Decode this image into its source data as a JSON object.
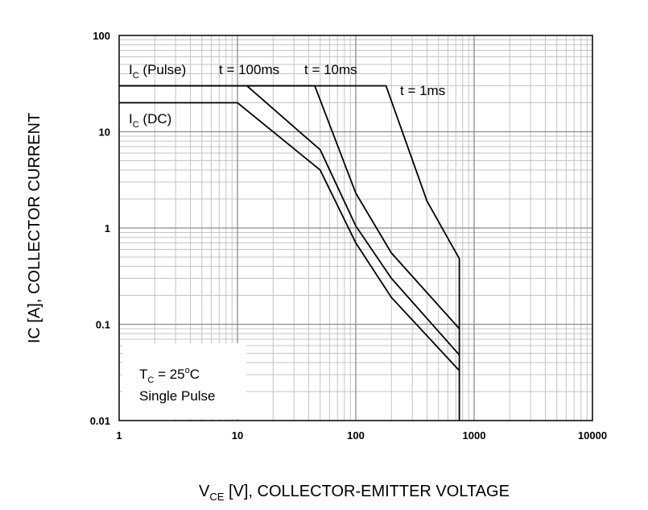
{
  "chart_data": {
    "type": "line",
    "x_scale": "log",
    "y_scale": "log",
    "xlim": [
      1,
      10000
    ],
    "ylim": [
      0.01,
      100
    ],
    "grid": true,
    "x_ticks": [
      "1",
      "10",
      "100",
      "1000",
      "10000"
    ],
    "y_ticks": [
      "100",
      "10",
      "1",
      "0.1",
      "0.01"
    ],
    "xlabel": {
      "main": "V",
      "sub": "CE",
      "rest": " [V], COLLECTOR-EMITTER VOLTAGE"
    },
    "ylabel": "IC [A], COLLECTOR CURRENT",
    "series": [
      {
        "name": "t = 1ms",
        "points": [
          [
            1,
            30
          ],
          [
            180,
            30
          ],
          [
            400,
            1.9
          ],
          [
            750,
            0.48
          ],
          [
            750,
            0.01
          ]
        ]
      },
      {
        "name": "t = 10ms",
        "points": [
          [
            1,
            30
          ],
          [
            45,
            30
          ],
          [
            100,
            2.3
          ],
          [
            200,
            0.55
          ],
          [
            750,
            0.09
          ]
        ]
      },
      {
        "name": "t = 100ms",
        "points": [
          [
            12,
            30
          ],
          [
            50,
            6.5
          ],
          [
            100,
            1.05
          ],
          [
            200,
            0.3
          ],
          [
            750,
            0.048
          ]
        ]
      },
      {
        "name": "I_C (DC)",
        "points": [
          [
            1,
            20
          ],
          [
            10,
            20
          ],
          [
            50,
            4
          ],
          [
            100,
            0.7
          ],
          [
            200,
            0.19
          ],
          [
            750,
            0.033
          ]
        ]
      }
    ],
    "labels": {
      "ic_pulse": {
        "main": "I",
        "sub": "C",
        "rest": " (Pulse)"
      },
      "ic_dc": {
        "main": "I",
        "sub": "C",
        "rest": " (DC)"
      },
      "t100": "t = 100ms",
      "t10": "t = 10ms",
      "t1": "t = 1ms"
    },
    "annotation": {
      "tc_main": "T",
      "tc_sub": "C",
      "tc_rest": " = 25",
      "tc_deg": "o",
      "tc_unit": "C",
      "line2": "Single Pulse"
    }
  }
}
